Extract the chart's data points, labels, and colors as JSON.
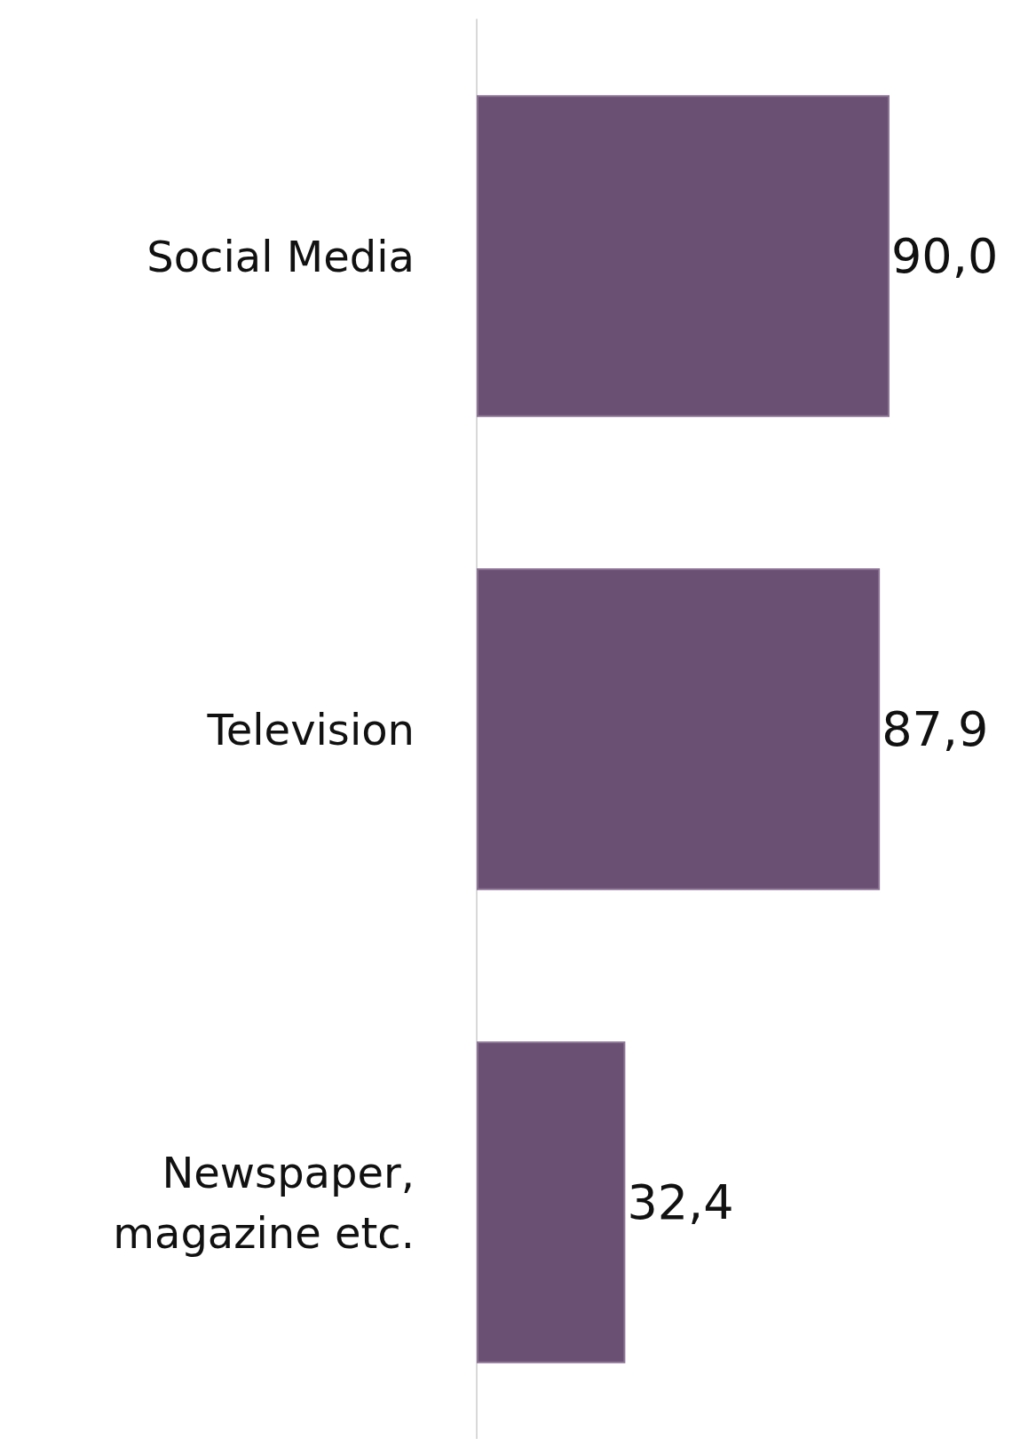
{
  "chart_data": {
    "type": "bar",
    "orientation": "horizontal",
    "categories": [
      "Social Media",
      "Television",
      "Newspaper,\nmagazine etc."
    ],
    "values": [
      90.0,
      87.9,
      32.4
    ],
    "color": "#6a5073",
    "value_labels": [
      "90,0",
      "87,9",
      "32,4"
    ]
  }
}
